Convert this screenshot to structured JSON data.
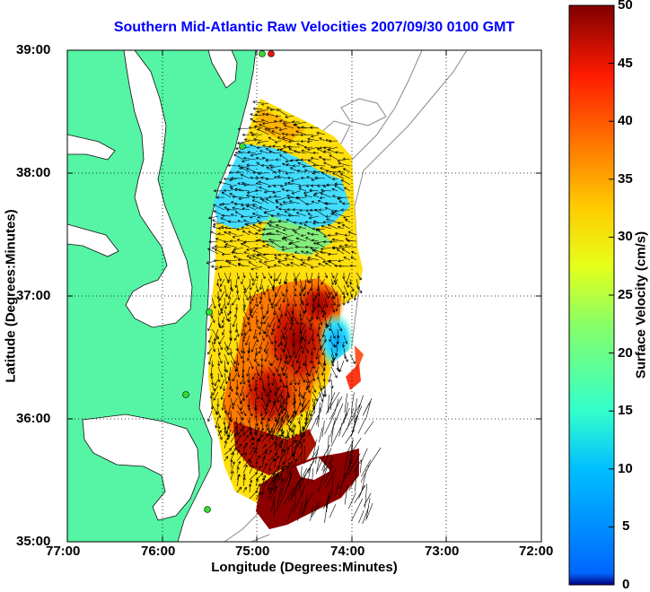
{
  "title": "Southern Mid-Atlantic Raw Velocities 2007/09/30 0100 GMT",
  "map": {
    "xlabel": "Longitude (Degrees:Minutes)",
    "ylabel": "Latitude (Degrees:Minutes)",
    "x_ticks": [
      "77:00",
      "76:00",
      "75:00",
      "74:00",
      "73:00",
      "72:00"
    ],
    "y_ticks": [
      "39:00",
      "38:00",
      "37:00",
      "36:00",
      "35:00"
    ],
    "lon_range": [
      -77,
      -72
    ],
    "lat_range": [
      35,
      39
    ],
    "grid": true,
    "land_color": "#55f5a5",
    "water_color": "#ffffff",
    "station_color": "#33dd33"
  },
  "colorbar": {
    "label": "Surface Velocity (cm/s)",
    "ticks": [
      "0",
      "5",
      "10",
      "15",
      "20",
      "25",
      "30",
      "35",
      "40",
      "45",
      "50"
    ],
    "range": [
      0,
      50
    ],
    "colormap": "jet"
  }
}
